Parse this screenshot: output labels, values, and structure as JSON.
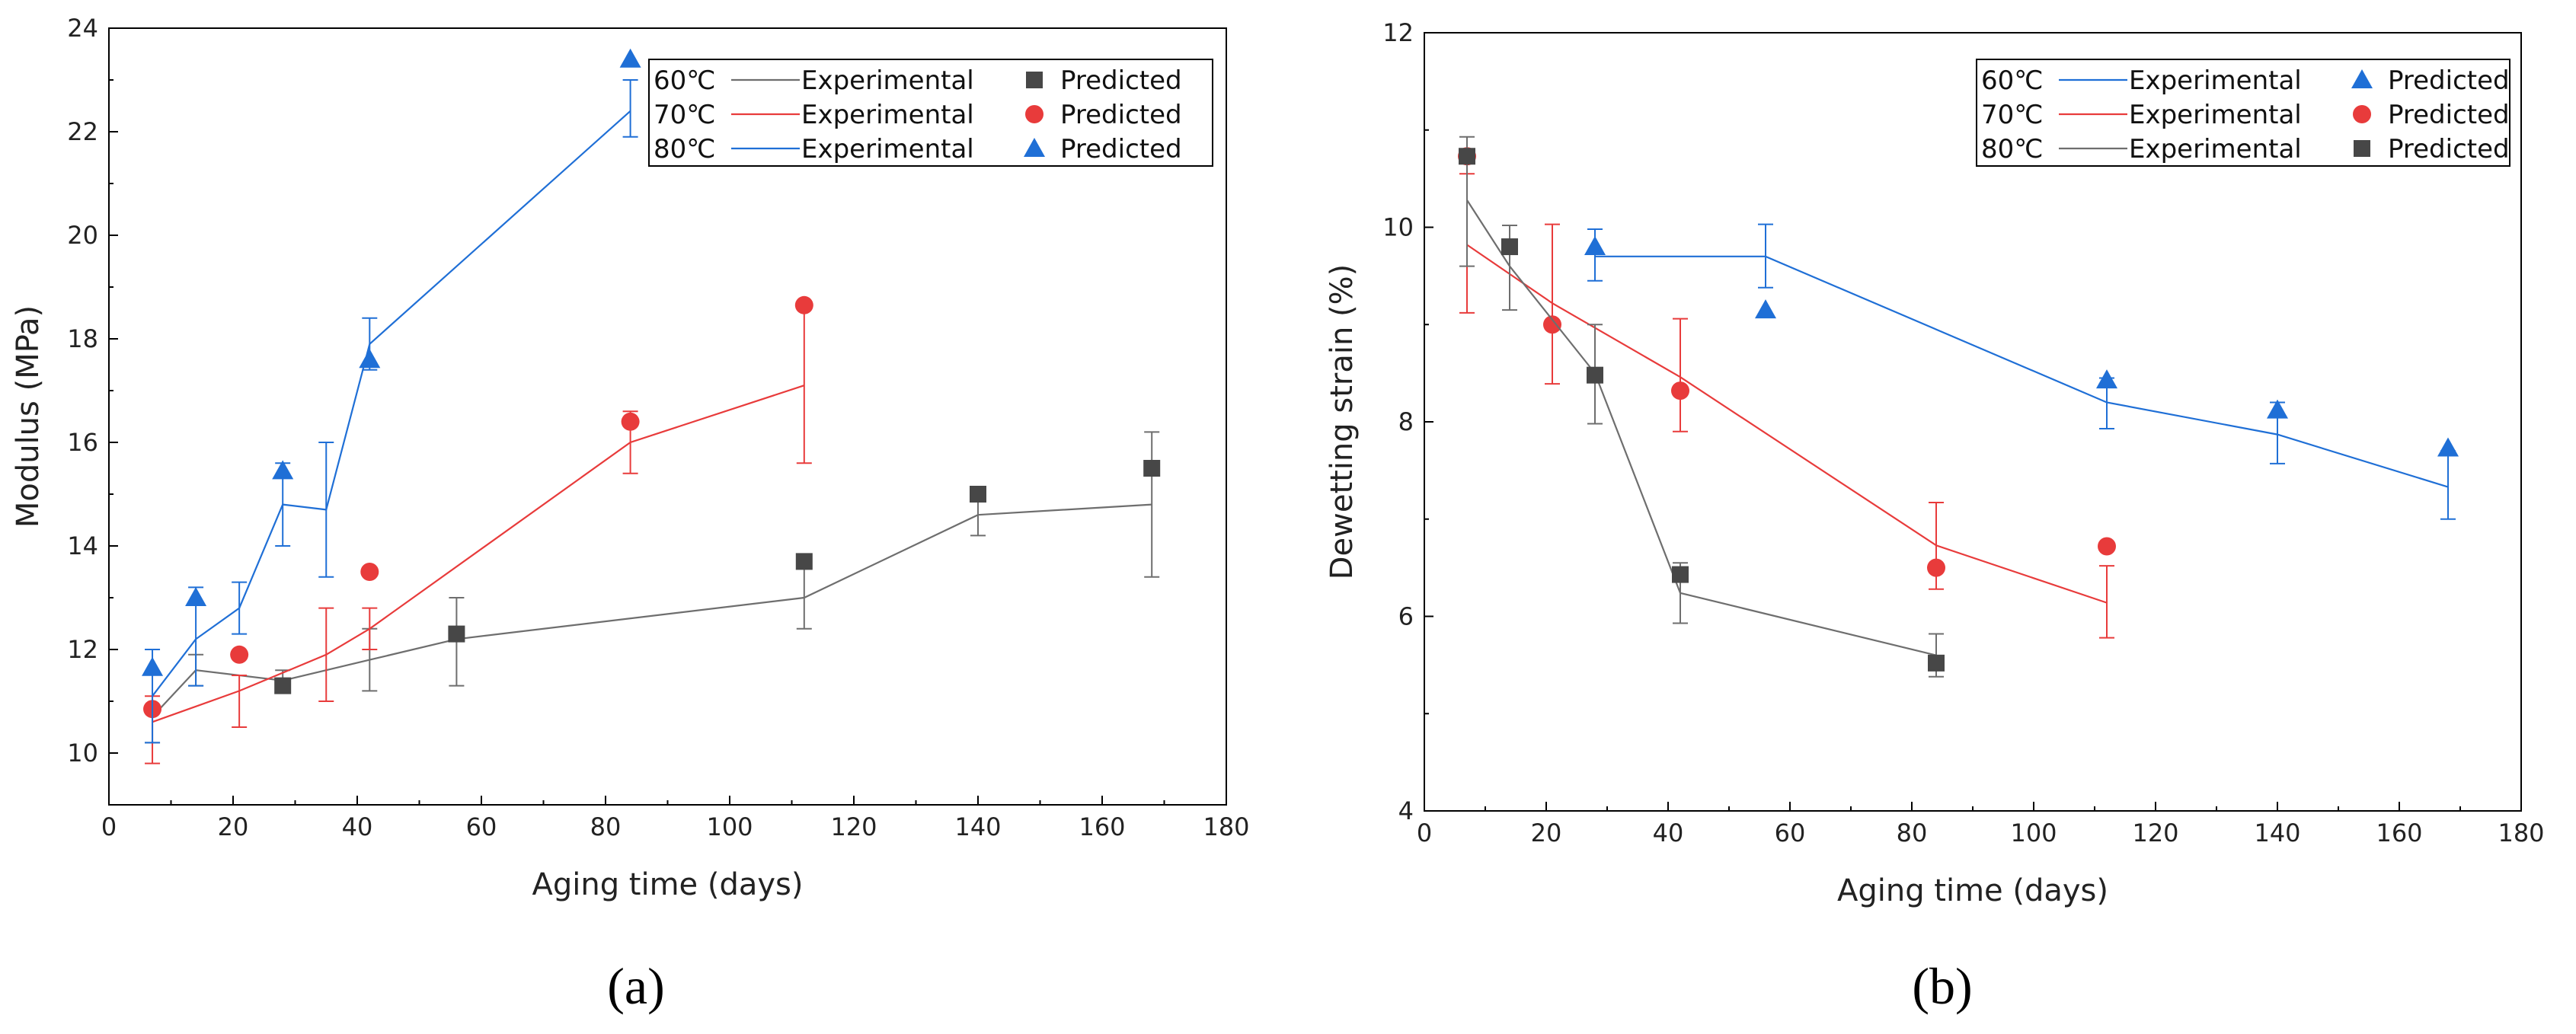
{
  "colors": {
    "black": "#474747",
    "red": "#e83b3b",
    "blue": "#1f6fd6",
    "gray_line": "#6e6e6e"
  },
  "panel_labels": {
    "a": "(a)",
    "b": "(b)"
  },
  "chart_data": [
    {
      "type": "line",
      "title": "",
      "xlabel": "Aging time (days)",
      "ylabel": "Modulus (MPa)",
      "xlim": [
        0,
        180
      ],
      "ylim": [
        9,
        24
      ],
      "xticks": [
        0,
        20,
        40,
        60,
        80,
        100,
        120,
        140,
        160,
        180
      ],
      "yticks": [
        10,
        12,
        14,
        16,
        18,
        20,
        22,
        24
      ],
      "series": [
        {
          "temp": "60℃",
          "color": "#474747",
          "line_color": "#6e6e6e",
          "marker": "square",
          "legend_exp": "Experimental",
          "legend_pred": "Predicted",
          "exp_x": [
            7,
            14,
            28,
            42,
            56,
            112,
            140,
            168
          ],
          "exp_y": [
            10.7,
            11.6,
            11.4,
            11.8,
            12.2,
            13.0,
            14.6,
            14.8
          ],
          "err_lo": [
            10.2,
            11.3,
            11.2,
            11.2,
            11.3,
            12.4,
            14.2,
            13.4
          ],
          "err_hi": [
            10.9,
            11.9,
            11.6,
            12.4,
            13.0,
            13.6,
            15.1,
            16.2
          ],
          "pred_x": [
            28,
            56,
            112,
            140,
            168
          ],
          "pred_y": [
            11.3,
            12.3,
            13.7,
            15.0,
            15.5
          ]
        },
        {
          "temp": "70℃",
          "color": "#e83b3b",
          "line_color": "#e83b3b",
          "marker": "circle",
          "legend_exp": "Experimental",
          "legend_pred": "Predicted",
          "exp_x": [
            7,
            21,
            35,
            42,
            84,
            112
          ],
          "exp_y": [
            10.6,
            11.2,
            11.9,
            12.4,
            16.0,
            17.1
          ],
          "err_lo": [
            9.8,
            10.5,
            11.0,
            12.0,
            15.4,
            15.6
          ],
          "err_hi": [
            11.1,
            11.5,
            12.8,
            12.8,
            16.6,
            18.6
          ],
          "pred_x": [
            7,
            21,
            42,
            84,
            112
          ],
          "pred_y": [
            10.85,
            11.9,
            13.5,
            16.4,
            18.65
          ]
        },
        {
          "temp": "80℃",
          "color": "#1f6fd6",
          "line_color": "#1f6fd6",
          "marker": "triangle",
          "legend_exp": "Experimental",
          "legend_pred": "Predicted",
          "exp_x": [
            7,
            14,
            21,
            28,
            35,
            42,
            84
          ],
          "exp_y": [
            11.1,
            12.2,
            12.8,
            14.8,
            14.7,
            17.9,
            22.4
          ],
          "err_lo": [
            10.2,
            11.3,
            12.3,
            14.0,
            13.4,
            17.4,
            21.9
          ],
          "err_hi": [
            12.0,
            13.2,
            13.3,
            15.6,
            16.0,
            18.4,
            23.0
          ],
          "pred_x": [
            7,
            14,
            28,
            42,
            84
          ],
          "pred_y": [
            11.65,
            13.0,
            15.45,
            17.6,
            23.4
          ]
        }
      ],
      "legend_order": [
        0,
        1,
        2
      ]
    },
    {
      "type": "line",
      "title": "",
      "xlabel": "Aging time (days)",
      "ylabel": "Dewetting strain (%)",
      "xlim": [
        0,
        180
      ],
      "ylim": [
        4,
        12
      ],
      "xticks": [
        0,
        20,
        40,
        60,
        80,
        100,
        120,
        140,
        160,
        180
      ],
      "yticks": [
        4,
        6,
        8,
        10,
        12
      ],
      "series": [
        {
          "temp": "60℃",
          "color": "#1f6fd6",
          "line_color": "#1f6fd6",
          "marker": "triangle",
          "legend_exp": "Experimental",
          "legend_pred": "Predicted",
          "exp_x": [
            28,
            56,
            112,
            140,
            168
          ],
          "exp_y": [
            9.7,
            9.7,
            8.2,
            7.87,
            7.33
          ],
          "err_lo": [
            9.45,
            9.38,
            7.93,
            7.57,
            7.0
          ],
          "err_hi": [
            9.98,
            10.03,
            8.45,
            8.2,
            7.7
          ],
          "pred_x": [
            28,
            56,
            112,
            140,
            168
          ],
          "pred_y": [
            9.8,
            9.15,
            8.43,
            8.12,
            7.73
          ]
        },
        {
          "temp": "70℃",
          "color": "#e83b3b",
          "line_color": "#e83b3b",
          "marker": "circle",
          "legend_exp": "Experimental",
          "legend_pred": "Predicted",
          "exp_x": [
            7,
            21,
            42,
            84,
            112
          ],
          "exp_y": [
            9.82,
            9.22,
            8.46,
            6.73,
            6.14
          ],
          "err_lo": [
            9.12,
            8.39,
            7.9,
            6.28,
            5.78
          ],
          "err_hi": [
            10.55,
            10.03,
            9.06,
            7.17,
            6.52
          ],
          "pred_x": [
            7,
            21,
            42,
            84,
            112
          ],
          "pred_y": [
            10.73,
            9.0,
            8.32,
            6.5,
            6.72
          ]
        },
        {
          "temp": "80℃",
          "color": "#474747",
          "line_color": "#6e6e6e",
          "marker": "square",
          "legend_exp": "Experimental",
          "legend_pred": "Predicted",
          "exp_x": [
            7,
            14,
            28,
            42,
            84
          ],
          "exp_y": [
            10.28,
            9.6,
            8.5,
            6.24,
            5.6
          ],
          "err_lo": [
            9.6,
            9.15,
            7.98,
            5.93,
            5.38
          ],
          "err_hi": [
            10.93,
            10.02,
            9.0,
            6.55,
            5.82
          ],
          "pred_x": [
            7,
            14,
            28,
            42,
            84
          ],
          "pred_y": [
            10.73,
            9.8,
            8.48,
            6.43,
            5.52
          ]
        }
      ],
      "legend_order": [
        0,
        1,
        2
      ]
    }
  ]
}
